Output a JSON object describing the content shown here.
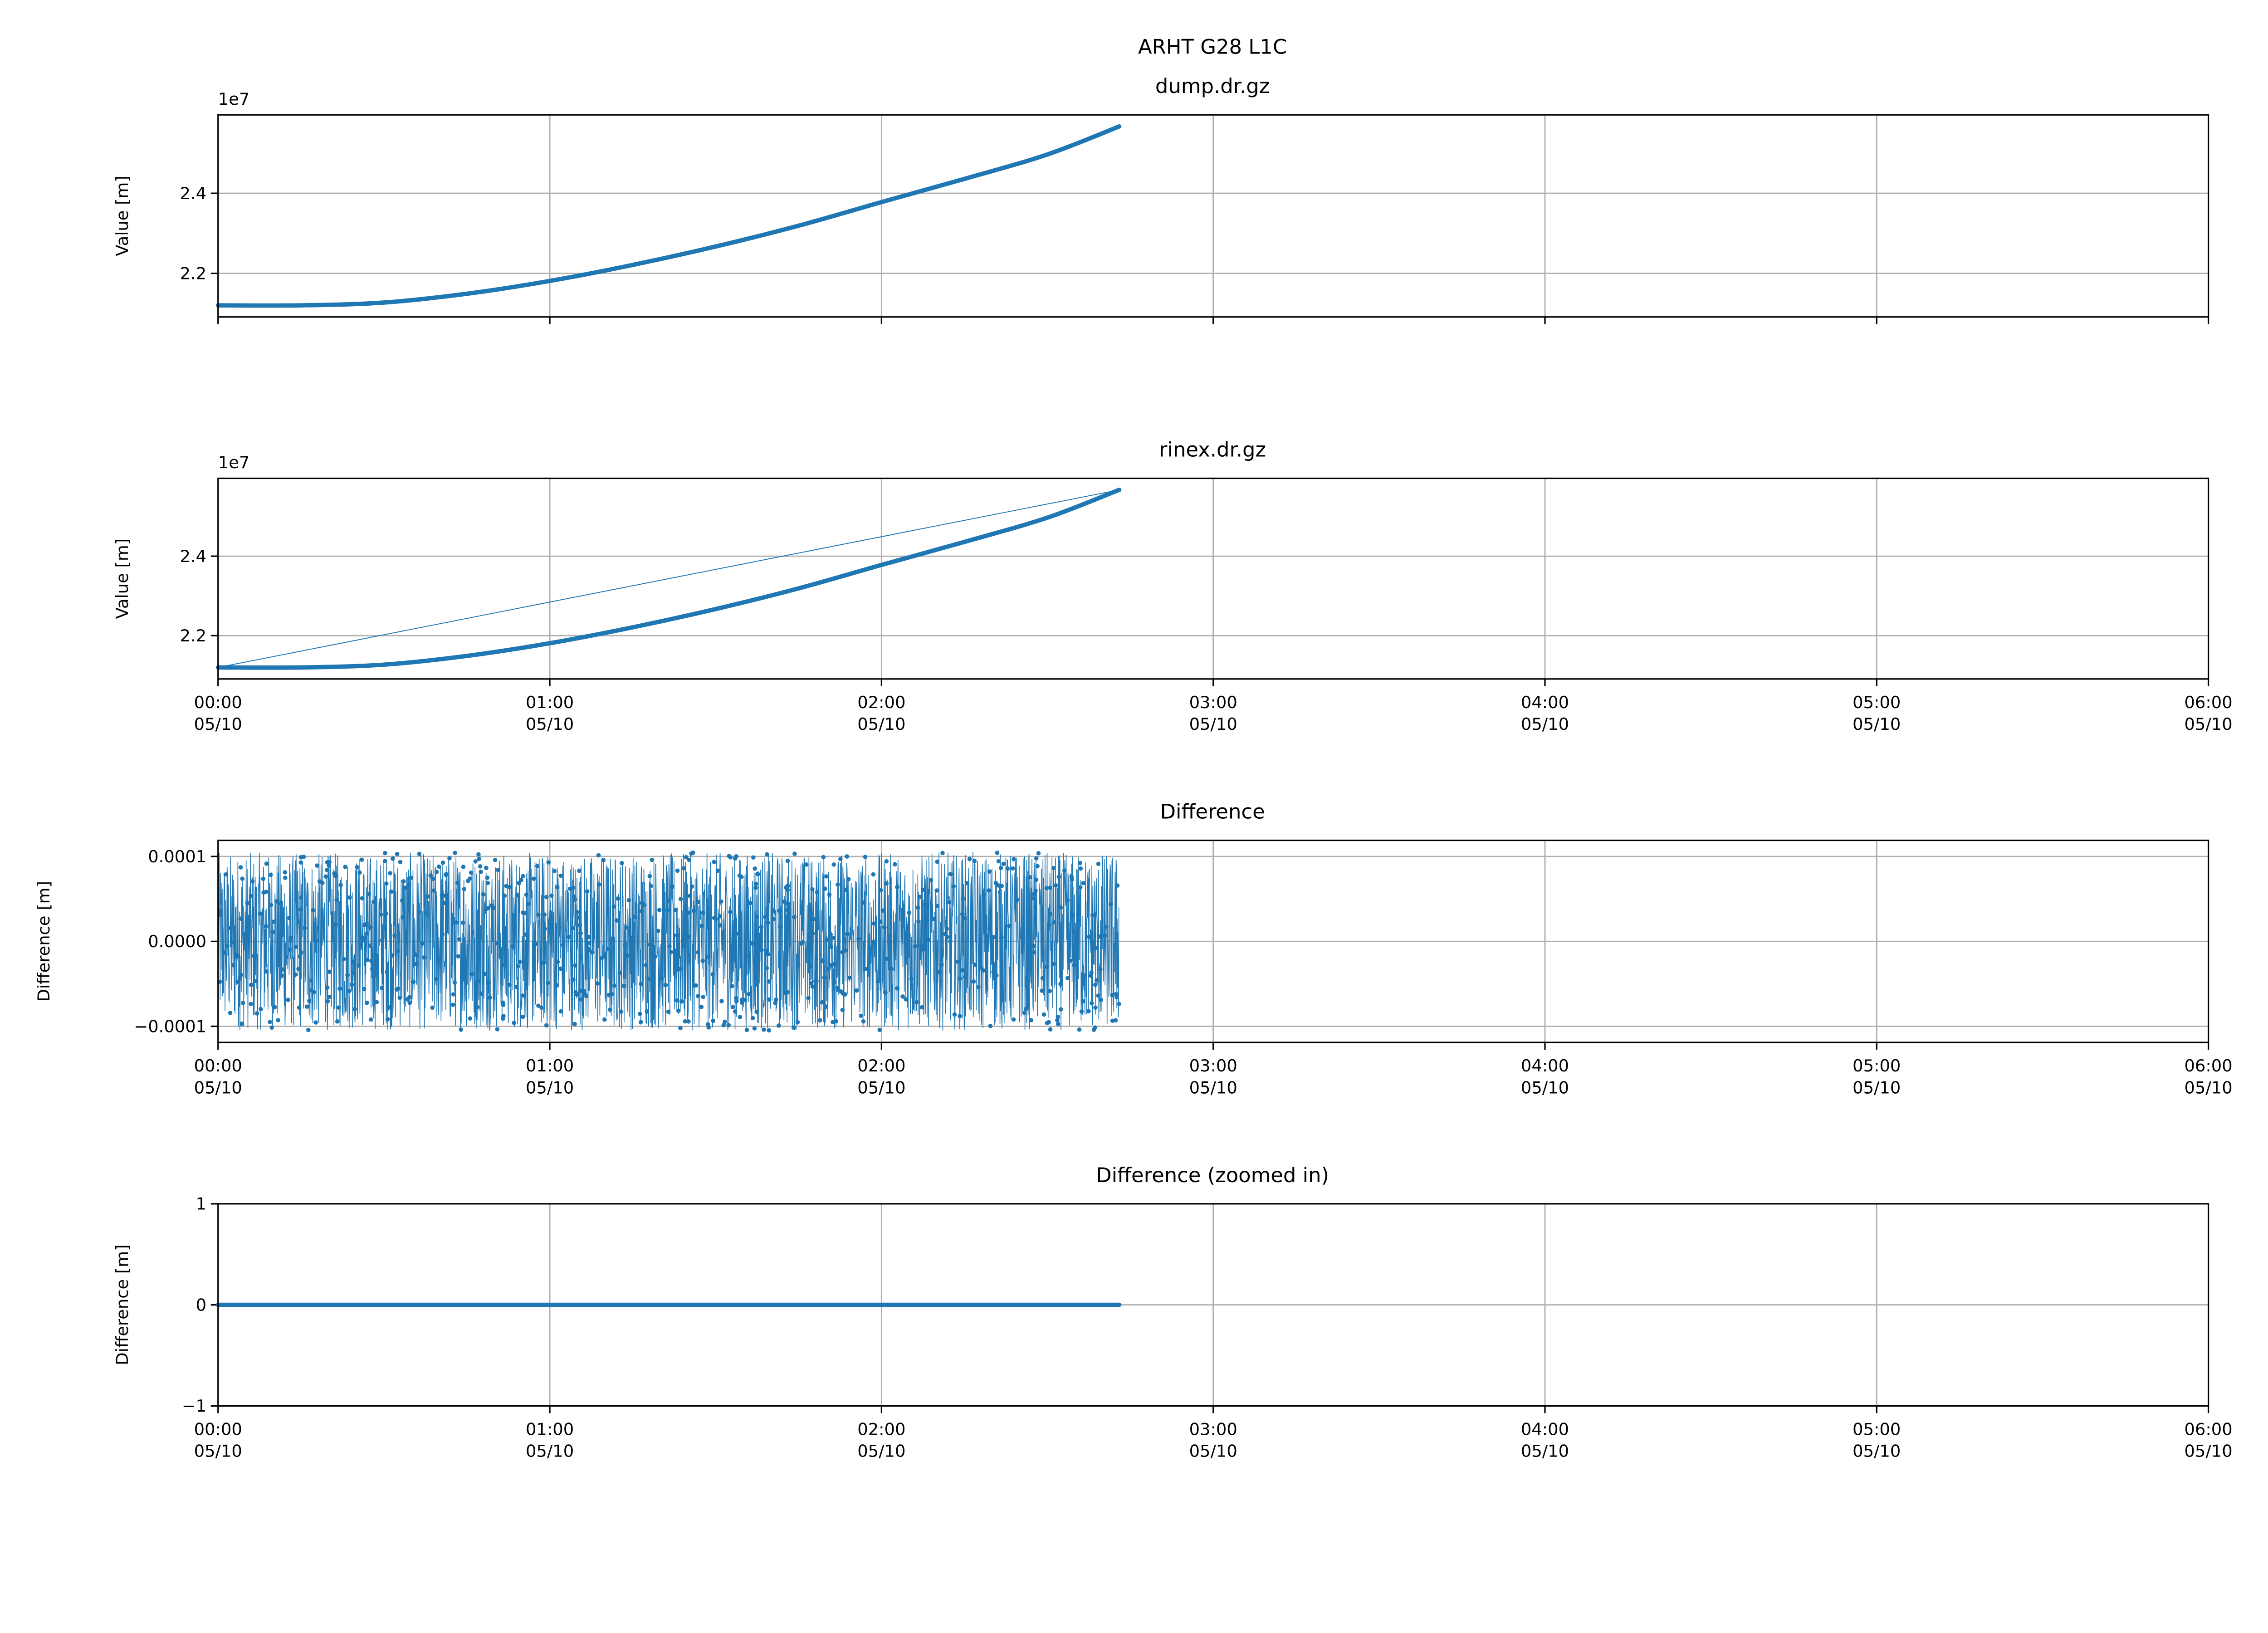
{
  "figure": {
    "suptitle": "ARHT G28 L1C"
  },
  "chart_data": [
    {
      "type": "line",
      "title": "dump.dr.gz",
      "ylabel": "Value [m]",
      "y_offset_label": "1e7",
      "ylim": [
        2.091,
        2.596
      ],
      "yticks": [
        "2.2",
        "2.4"
      ],
      "ytick_values": [
        2.2,
        2.4
      ],
      "xlim": [
        "00:00",
        "06:00"
      ],
      "xticks": [],
      "grid": true,
      "color": "#1f77b4",
      "x": [
        "00:00",
        "00:15",
        "00:30",
        "00:45",
        "01:00",
        "01:15",
        "01:30",
        "01:45",
        "02:00",
        "02:15",
        "02:30",
        "02:43"
      ],
      "values": [
        2.12,
        2.12,
        2.127,
        2.149,
        2.181,
        2.221,
        2.267,
        2.319,
        2.378,
        2.436,
        2.497,
        2.567
      ]
    },
    {
      "type": "line",
      "title": "rinex.dr.gz",
      "ylabel": "Value [m]",
      "y_offset_label": "1e7",
      "ylim": [
        2.091,
        2.596
      ],
      "yticks": [
        "2.2",
        "2.4"
      ],
      "ytick_values": [
        2.2,
        2.4
      ],
      "xlim": [
        "00:00",
        "06:00"
      ],
      "xticks": [
        "00:00\n05/10",
        "01:00\n05/10",
        "02:00\n05/10",
        "03:00\n05/10",
        "04:00\n05/10",
        "05:00\n05/10",
        "06:00\n05/10"
      ],
      "grid": true,
      "color": "#1f77b4",
      "x": [
        "00:00",
        "00:15",
        "00:30",
        "00:45",
        "01:00",
        "01:15",
        "01:30",
        "01:45",
        "02:00",
        "02:15",
        "02:30",
        "02:43"
      ],
      "values": [
        2.12,
        2.12,
        2.127,
        2.149,
        2.181,
        2.221,
        2.267,
        2.319,
        2.378,
        2.436,
        2.497,
        2.567
      ],
      "connector_line": {
        "from": [
          "00:00",
          2.12
        ],
        "to": [
          "02:43",
          2.567
        ]
      }
    },
    {
      "type": "scatter",
      "title": "Difference",
      "ylabel": "Difference [m]",
      "ylim": [
        -0.000119,
        0.000119
      ],
      "yticks": [
        "−0.0001",
        "0.0000",
        "0.0001"
      ],
      "ytick_values": [
        -0.0001,
        0,
        0.0001
      ],
      "xlim": [
        "00:00",
        "06:00"
      ],
      "xticks": [
        "00:00\n05/10",
        "01:00\n05/10",
        "02:00\n05/10",
        "03:00\n05/10",
        "04:00\n05/10",
        "05:00\n05/10",
        "06:00\n05/10"
      ],
      "grid": true,
      "color": "#1f77b4",
      "x_range": [
        "00:00",
        "02:43"
      ],
      "value_range": [
        -0.000105,
        0.000105
      ]
    },
    {
      "type": "line",
      "title": "Difference (zoomed in)",
      "ylabel": "Difference [m]",
      "ylim": [
        -1,
        1
      ],
      "yticks": [
        "−1",
        "0",
        "1"
      ],
      "ytick_values": [
        -1,
        0,
        1
      ],
      "xlim": [
        "00:00",
        "06:00"
      ],
      "xticks": [
        "00:00\n05/10",
        "01:00\n05/10",
        "02:00\n05/10",
        "03:00\n05/10",
        "04:00\n05/10",
        "05:00\n05/10",
        "06:00\n05/10"
      ],
      "grid": true,
      "color": "#1f77b4",
      "x": [
        "00:00",
        "02:43"
      ],
      "values": [
        0,
        0
      ]
    }
  ]
}
